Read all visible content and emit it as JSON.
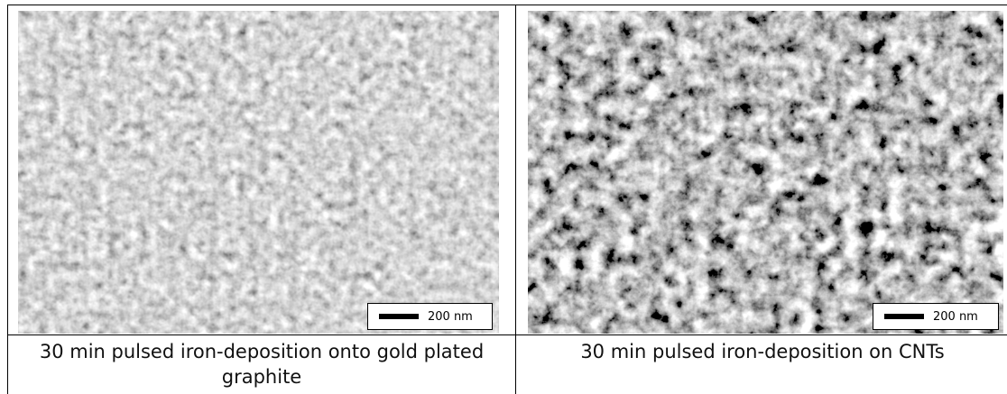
{
  "table": {
    "cells": [
      {
        "scale_bar": "200 nm",
        "caption": "30 min pulsed iron-deposition onto gold plated graphite"
      },
      {
        "scale_bar": "200 nm",
        "caption": "30 min pulsed iron-deposition on CNTs"
      }
    ]
  }
}
